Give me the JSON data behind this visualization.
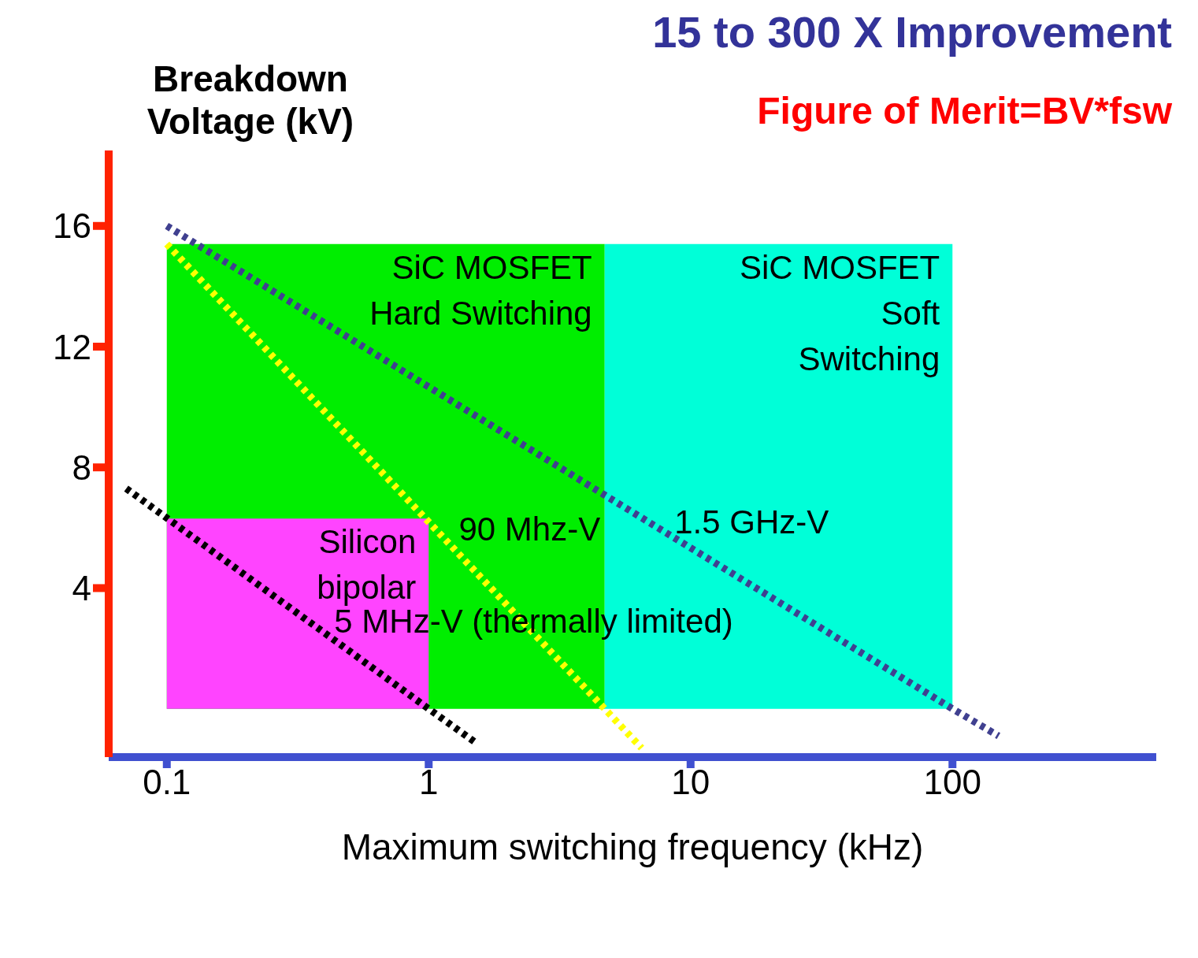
{
  "chart_data": {
    "type": "line",
    "title": "15 to 300 X Improvement",
    "subtitle": "Figure of Merit=BV*fsw",
    "xlabel": "Maximum switching frequency (kHz)",
    "ylabel": "Breakdown Voltage (kV)",
    "series": [
      {
        "type": "area",
        "name": "SiC  MOSFET\nHard Switching",
        "color": "#00ee00",
        "x": [
          0.1,
          4.7
        ],
        "values": [
          15.4,
          15.4
        ]
      },
      {
        "type": "area",
        "name": "SiC MOSFET\nSoft\nSwitching",
        "color": "#00ffd8",
        "x": [
          4.7,
          100
        ],
        "values": [
          15.4,
          15.4
        ]
      },
      {
        "type": "area",
        "name": "Silicon\nbipolar",
        "color": "#ff44ff",
        "x": [
          0.1,
          1
        ],
        "values": [
          6.3,
          6.3
        ]
      },
      {
        "name": "1.5 GHz-V",
        "color": "#404090",
        "x": [
          0.1,
          100,
          150
        ],
        "values": [
          16,
          0,
          -0.9
        ]
      },
      {
        "name": "90 Mhz-V",
        "color": "#ffff00",
        "x": [
          0.1,
          4.7,
          6.5
        ],
        "values": [
          15.4,
          0,
          -1.3
        ]
      },
      {
        "name": "5 MHz-V (thermally limited)",
        "color": "#000000",
        "x": [
          0.07,
          1,
          1.5
        ],
        "values": [
          7.3,
          0,
          -1.1
        ]
      }
    ],
    "xlim": [
      0.06,
      600
    ],
    "ylim": [
      -1.6,
      18.5
    ],
    "xticks": [
      0.1,
      1,
      10,
      100
    ],
    "yticks": [
      4,
      8,
      12,
      16
    ],
    "log": "x",
    "grid": false,
    "legend": false,
    "marker": "none",
    "line_style": "dotted"
  }
}
